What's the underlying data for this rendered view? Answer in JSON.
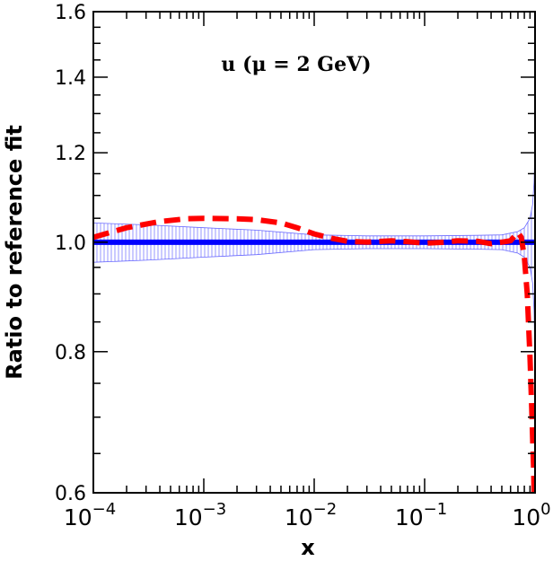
{
  "chart_data": {
    "type": "line",
    "title": "u (μ = 2 GeV)",
    "xlabel": "x",
    "ylabel": "Ratio to reference fit",
    "xscale": "log",
    "yscale": "log",
    "xlim": [
      0.0001,
      1
    ],
    "ylim": [
      0.6,
      1.6
    ],
    "x_tick_labels": [
      {
        "base": "10",
        "exp": "−4",
        "value": 0.0001
      },
      {
        "base": "10",
        "exp": "−3",
        "value": 0.001
      },
      {
        "base": "10",
        "exp": "−2",
        "value": 0.01
      },
      {
        "base": "10",
        "exp": "−1",
        "value": 0.1
      },
      {
        "base": "10",
        "exp": "0",
        "value": 1
      }
    ],
    "y_tick_labels": [
      {
        "label": "0.6",
        "value": 0.6
      },
      {
        "label": "0.8",
        "value": 0.8
      },
      {
        "label": "1.0",
        "value": 1.0
      },
      {
        "label": "1.2",
        "value": 1.2
      },
      {
        "label": "1.4",
        "value": 1.4
      },
      {
        "label": "1.6",
        "value": 1.6
      }
    ],
    "grid": false,
    "series": [
      {
        "role": "reference",
        "style": "solid",
        "color": "#0000ff",
        "x": [
          0.0001,
          1
        ],
        "y": [
          1.0,
          1.0
        ]
      },
      {
        "role": "uncertainty-band",
        "style": "hatched",
        "color": "#7a7aff",
        "x": [
          0.0001,
          0.0003,
          0.001,
          0.003,
          0.01,
          0.03,
          0.1,
          0.3,
          0.5,
          0.7,
          0.8,
          0.9,
          0.95,
          0.98,
          0.99
        ],
        "upper": [
          1.04,
          1.036,
          1.03,
          1.025,
          1.015,
          1.013,
          1.013,
          1.014,
          1.015,
          1.022,
          1.03,
          1.05,
          1.08,
          1.13,
          1.18
        ],
        "lower": [
          0.96,
          0.964,
          0.97,
          0.975,
          0.985,
          0.987,
          0.987,
          0.986,
          0.985,
          0.978,
          0.97,
          0.95,
          0.92,
          0.87,
          0.82
        ]
      },
      {
        "role": "comparison-fit",
        "style": "dashed",
        "color": "#ff0000",
        "x": [
          0.0001,
          0.0002,
          0.0004,
          0.0007,
          0.001,
          0.002,
          0.003,
          0.005,
          0.007,
          0.01,
          0.015,
          0.02,
          0.03,
          0.05,
          0.07,
          0.1,
          0.15,
          0.2,
          0.3,
          0.4,
          0.5,
          0.6,
          0.65,
          0.7,
          0.75,
          0.8,
          0.85,
          0.9,
          0.93,
          0.95,
          0.97,
          0.98
        ],
        "y": [
          1.01,
          1.03,
          1.043,
          1.049,
          1.05,
          1.049,
          1.047,
          1.04,
          1.03,
          1.017,
          1.007,
          1.002,
          1.0,
          1.003,
          1.001,
          0.998,
          1.0,
          1.003,
          1.002,
          0.997,
          1.0,
          1.003,
          1.012,
          1.02,
          1.01,
          0.97,
          0.9,
          0.79,
          0.72,
          0.67,
          0.63,
          0.6
        ]
      }
    ]
  }
}
